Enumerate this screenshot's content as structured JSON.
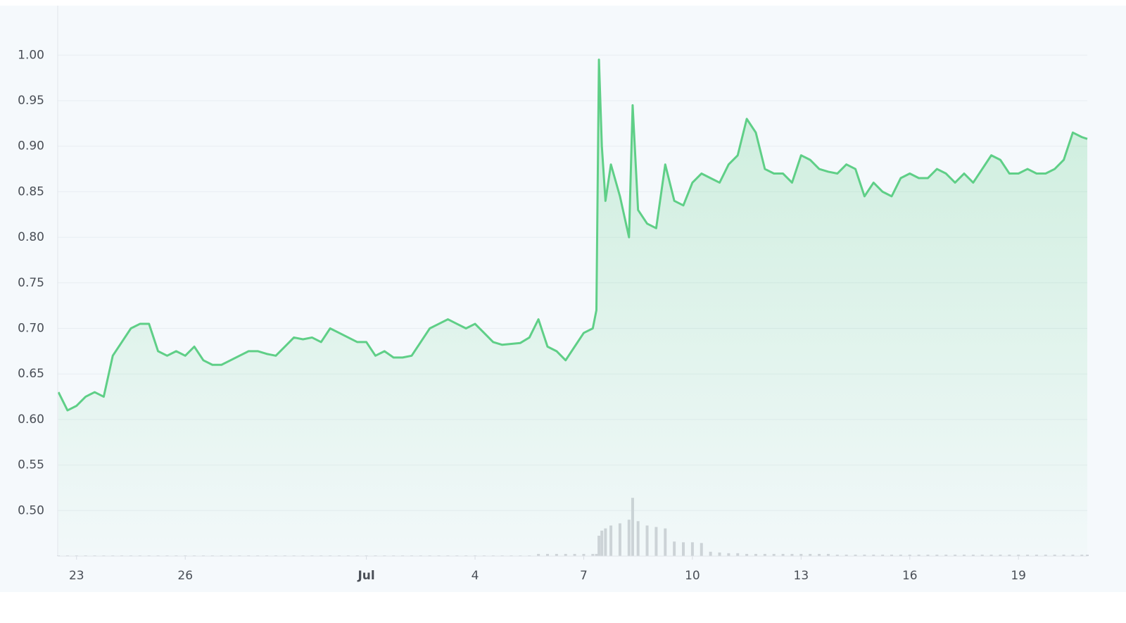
{
  "chart_data": {
    "type": "line",
    "xlim": [
      22.48,
      50.9
    ],
    "ylim": [
      0.45,
      1.05
    ],
    "y2lim": [
      0,
      750
    ],
    "grid": true,
    "yticks": [
      {
        "value": 0.5,
        "label": "0.50"
      },
      0.55,
      {
        "value": 0.6,
        "label": "0.60"
      },
      0.65,
      {
        "value": 0.7,
        "label": "0.70"
      },
      0.75,
      {
        "value": 0.8,
        "label": "0.80"
      },
      0.85,
      {
        "value": 0.9,
        "label": "0.90"
      },
      0.95,
      {
        "value": 1,
        "label": "1.00"
      }
    ],
    "xticks": [
      23,
      26,
      {
        "value": 31,
        "label": "Jul"
      },
      {
        "value": 34,
        "label": "4"
      },
      {
        "value": 37,
        "label": "7"
      },
      {
        "value": 40,
        "label": "10"
      },
      {
        "value": 43,
        "label": "13"
      },
      {
        "value": 46,
        "label": "16"
      },
      {
        "value": 49,
        "label": "19"
      }
    ],
    "x": [
      22.5,
      22.75,
      23,
      23.25,
      23.5,
      23.75,
      24,
      24.25,
      24.5,
      24.75,
      25,
      25.25,
      25.5,
      25.75,
      26,
      26.25,
      26.5,
      26.75,
      27,
      27.25,
      27.5,
      27.75,
      28,
      28.25,
      28.5,
      28.75,
      29,
      29.25,
      29.5,
      29.75,
      30,
      30.25,
      30.5,
      30.75,
      31,
      31.25,
      31.5,
      31.75,
      32,
      32.25,
      32.5,
      32.75,
      33,
      33.25,
      33.5,
      33.75,
      34,
      34.25,
      34.5,
      34.75,
      35,
      35.25,
      35.5,
      35.75,
      36,
      36.25,
      36.5,
      36.75,
      37,
      37.25,
      37.35,
      37.42,
      37.5,
      37.6,
      37.75,
      38,
      38.25,
      38.35,
      38.5,
      38.75,
      39,
      39.25,
      39.5,
      39.75,
      40,
      40.25,
      40.5,
      40.75,
      41,
      41.25,
      41.5,
      41.75,
      42,
      42.25,
      42.5,
      42.75,
      43,
      43.25,
      43.5,
      43.75,
      44,
      44.25,
      44.5,
      44.75,
      45,
      45.25,
      45.5,
      45.75,
      46,
      46.25,
      46.5,
      46.75,
      47,
      47.25,
      47.5,
      47.75,
      48,
      48.25,
      48.5,
      48.75,
      49,
      49.25,
      49.5,
      49.75,
      50,
      50.25,
      50.5,
      50.75,
      50.9
    ],
    "series": [
      {
        "type": "line",
        "color": "#5fcf87",
        "values": [
          0.63,
          0.61,
          0.615,
          0.625,
          0.63,
          0.625,
          0.67,
          0.685,
          0.7,
          0.705,
          0.705,
          0.675,
          0.67,
          0.675,
          0.67,
          0.68,
          0.665,
          0.66,
          0.66,
          0.665,
          0.67,
          0.675,
          0.675,
          0.672,
          0.67,
          0.68,
          0.69,
          0.688,
          0.69,
          0.685,
          0.7,
          0.695,
          0.69,
          0.685,
          0.685,
          0.67,
          0.675,
          0.668,
          0.668,
          0.67,
          0.685,
          0.7,
          0.705,
          0.71,
          0.705,
          0.7,
          0.705,
          0.695,
          0.685,
          0.682,
          0.683,
          0.684,
          0.69,
          0.71,
          0.68,
          0.675,
          0.665,
          0.68,
          0.695,
          0.7,
          0.72,
          0.995,
          0.9,
          0.84,
          0.88,
          0.845,
          0.8,
          0.945,
          0.83,
          0.815,
          0.81,
          0.88,
          0.84,
          0.835,
          0.86,
          0.87,
          0.865,
          0.86,
          0.88,
          0.89,
          0.93,
          0.915,
          0.875,
          0.87,
          0.87,
          0.86,
          0.89,
          0.885,
          0.875,
          0.872,
          0.87,
          0.88,
          0.875,
          0.845,
          0.86,
          0.85,
          0.845,
          0.865,
          0.87,
          0.865,
          0.865,
          0.875,
          0.87,
          0.86,
          0.87,
          0.86,
          0.875,
          0.89,
          0.885,
          0.87,
          0.87,
          0.875,
          0.87,
          0.87,
          0.875,
          0.885,
          0.915,
          0.91,
          0.908
        ]
      },
      {
        "type": "bar",
        "axis": "y2",
        "color": "#cfd3d9",
        "values": [
          1,
          1,
          1,
          1,
          1,
          1,
          1,
          1,
          1,
          1,
          1,
          1,
          1,
          1,
          1,
          1,
          1,
          1,
          1,
          1,
          1,
          1,
          1,
          1,
          1,
          1,
          1,
          1,
          1,
          1,
          1,
          1,
          1,
          1,
          1,
          1,
          1,
          1,
          1,
          1,
          1,
          1,
          1,
          1,
          1,
          1,
          1,
          1,
          1,
          1,
          1,
          1,
          1,
          3,
          3,
          3,
          3,
          3,
          3,
          3,
          3,
          28,
          35,
          38,
          42,
          45,
          50,
          80,
          48,
          42,
          40,
          38,
          20,
          19,
          19,
          18,
          6,
          5,
          4,
          4,
          3,
          3,
          3,
          3,
          3,
          3,
          3,
          3,
          3,
          3,
          2,
          2,
          2,
          2,
          2,
          2,
          2,
          2,
          2,
          2,
          2,
          2,
          2,
          2,
          2,
          2,
          2,
          2,
          2,
          2,
          2,
          2,
          2,
          2,
          2,
          2,
          2,
          2,
          2
        ]
      }
    ]
  }
}
